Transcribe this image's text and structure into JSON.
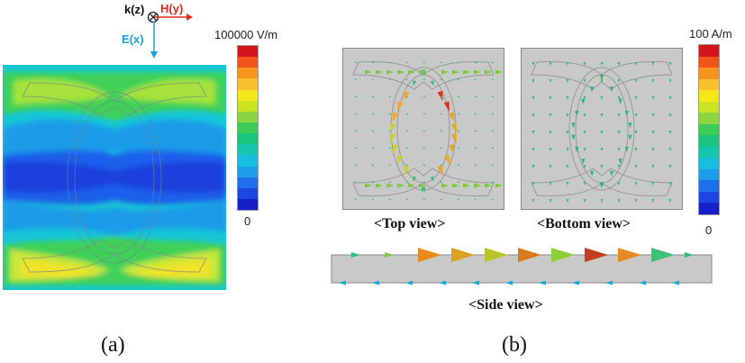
{
  "panel_a": {
    "axes": {
      "k": "k(z)",
      "h": "H(y)",
      "e": "E(x)",
      "colors": {
        "k": "#111111",
        "h": "#e8291c",
        "e": "#1aa0e0"
      }
    },
    "colorbar": {
      "max_label": "100000 V/m",
      "min_label": "0"
    },
    "caption": "(a)"
  },
  "panel_b": {
    "colorbar": {
      "max_label": "100 A/m",
      "min_label": "0"
    },
    "views": {
      "top": "<Top view>",
      "bottom": "<Bottom view>",
      "side": "<Side view>"
    },
    "caption": "(b)"
  },
  "colorbar_colors": [
    "#d4141c",
    "#f0541a",
    "#f7941d",
    "#fbc02d",
    "#f5e71c",
    "#c9e521",
    "#8bd640",
    "#3ccc57",
    "#19c47c",
    "#15c6ad",
    "#16bfe0",
    "#1e9ce8",
    "#1f6fea",
    "#1d45e0",
    "#1620c8"
  ]
}
